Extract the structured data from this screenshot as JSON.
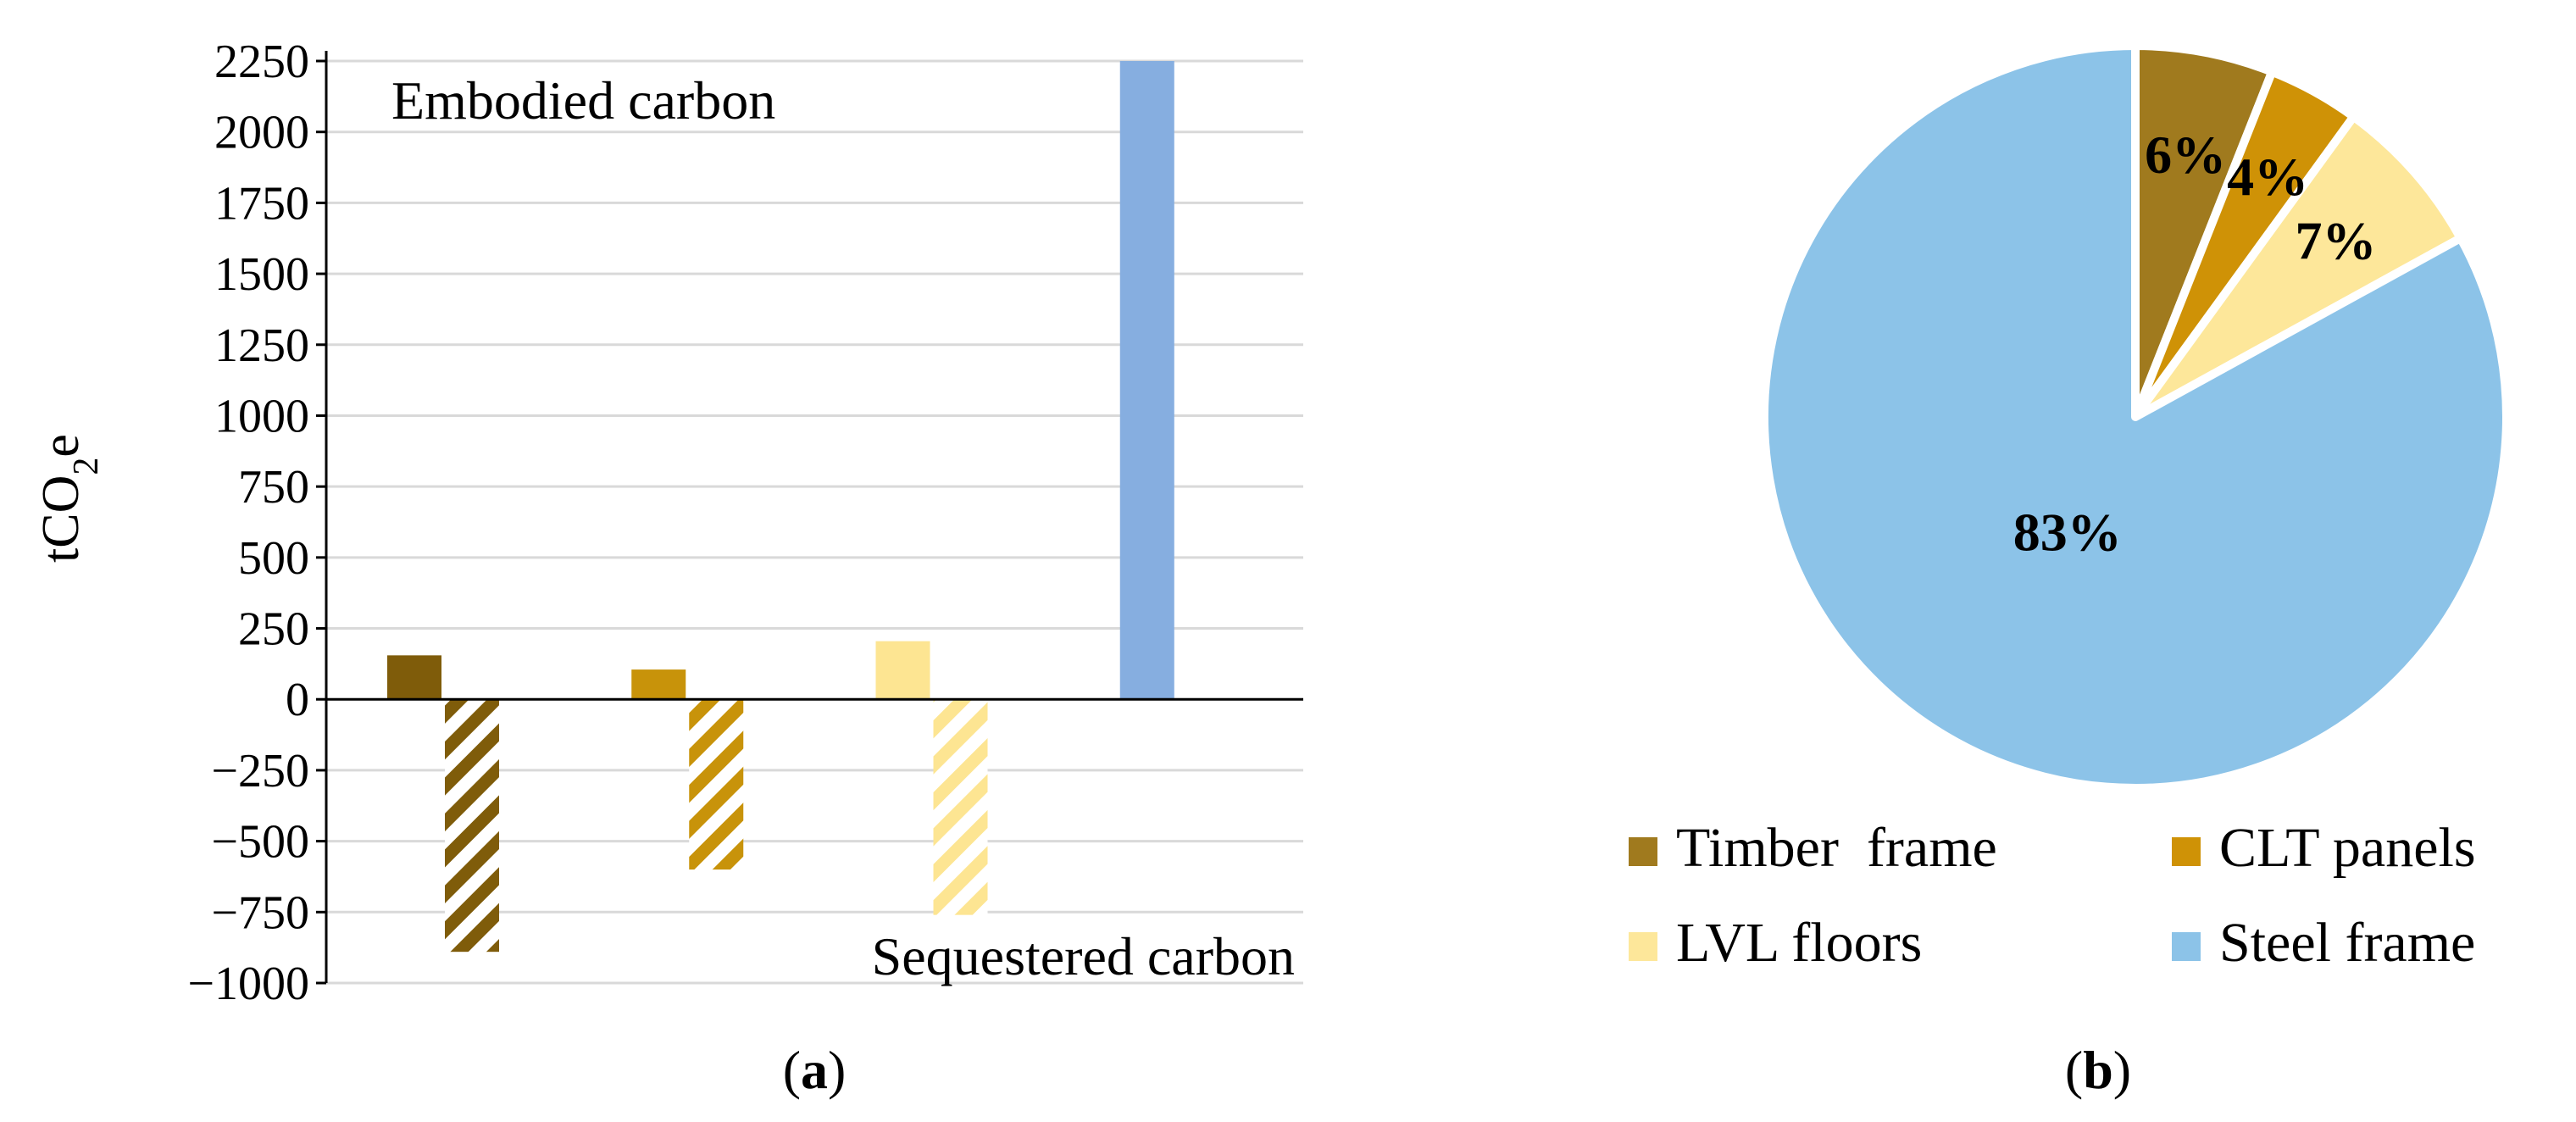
{
  "chart_data": [
    {
      "type": "bar",
      "panel_label": "a",
      "ylabel": "tCO",
      "ylabel_sub": "2",
      "ylabel_suffix": "e",
      "ylim": [
        -1000,
        2250
      ],
      "yticks": [
        2250,
        2000,
        1750,
        1500,
        1250,
        1000,
        750,
        500,
        250,
        0,
        -250,
        -500,
        -750,
        -1000
      ],
      "ytick_labels": [
        "2250",
        "2000",
        "1750",
        "1500",
        "1250",
        "1000",
        "750",
        "500",
        "250",
        "0",
        "−250",
        "−500",
        "−750",
        "−1000"
      ],
      "grid": true,
      "annotations": {
        "embodied": "Embodied carbon",
        "sequestered": "Sequestered carbon"
      },
      "categories": [
        "Timber frame",
        "CLT panels",
        "LVL floors",
        "Steel frame"
      ],
      "series": [
        {
          "name": "Embodied carbon",
          "values": [
            155,
            105,
            205,
            2250
          ]
        },
        {
          "name": "Sequestered carbon",
          "values": [
            -890,
            -600,
            -760,
            0
          ]
        }
      ],
      "colors": [
        "#7f5c0a",
        "#c8930a",
        "#fde592",
        "#86aee0"
      ]
    },
    {
      "type": "pie",
      "panel_label": "b",
      "labels": [
        "Timber  frame",
        "CLT panels",
        "LVL floors",
        "Steel frame"
      ],
      "values": [
        6,
        4,
        7,
        83
      ],
      "value_labels": [
        "6%",
        "4%",
        "7%",
        "83%"
      ],
      "colors": [
        "#a07a1e",
        "#cf9206",
        "#fde79a",
        "#8cc3e8"
      ],
      "legend_position": "bottom"
    }
  ],
  "captions": {
    "a": "a",
    "b": "b"
  }
}
